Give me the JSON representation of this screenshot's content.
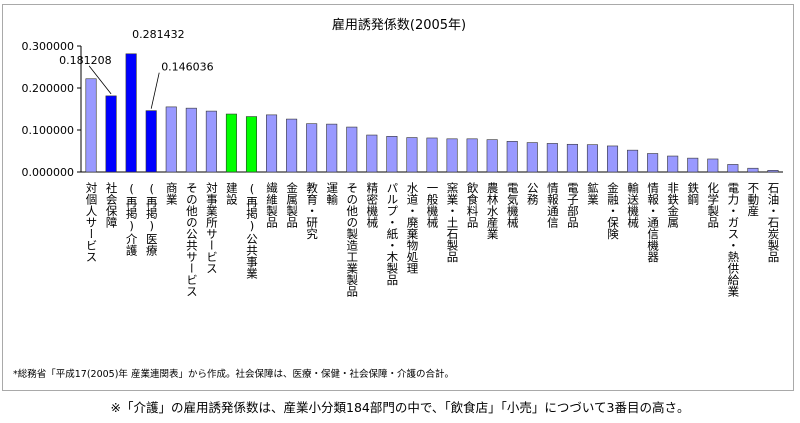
{
  "chart_data": {
    "type": "bar",
    "title": "雇用誘発係数(2005年)",
    "xlabel": "",
    "ylabel": "",
    "ylim": [
      0,
      0.3
    ],
    "yticks": [
      "0.000000",
      "0.100000",
      "0.200000",
      "0.300000"
    ],
    "grid": false,
    "legend": "none",
    "categories": [
      "対個人サービス",
      "社会保障",
      "(再掲)介護",
      "(再掲)医療",
      "商業",
      "その他の公共サービス",
      "対事業所サービス",
      "建設",
      "(再掲)公共事業",
      "繊維製品",
      "金属製品",
      "教育・研究",
      "運輸",
      "その他の製造工業製品",
      "精密機械",
      "パルプ・紙・木製品",
      "水道・廃棄物処理",
      "一般機械",
      "窯業・土石製品",
      "飲食料品",
      "農林水産業",
      "電気機械",
      "公務",
      "情報通信",
      "電子部品",
      "鉱業",
      "金融・保険",
      "輸送機械",
      "情報・通信機器",
      "非鉄金属",
      "鉄鋼",
      "化学製品",
      "電力・ガス・熱供給業",
      "不動産",
      "石油・石炭製品"
    ],
    "values": [
      0.222,
      0.181208,
      0.281432,
      0.146036,
      0.155,
      0.152,
      0.145,
      0.138,
      0.132,
      0.136,
      0.126,
      0.115,
      0.114,
      0.107,
      0.088,
      0.085,
      0.082,
      0.081,
      0.079,
      0.079,
      0.077,
      0.073,
      0.07,
      0.068,
      0.066,
      0.065,
      0.062,
      0.052,
      0.044,
      0.038,
      0.033,
      0.031,
      0.018,
      0.009,
      0.004
    ],
    "data_labels": [
      {
        "index": 1,
        "text": "0.181208"
      },
      {
        "index": 2,
        "text": "0.281432"
      },
      {
        "index": 3,
        "text": "0.146036"
      }
    ],
    "colors": {
      "default": "#9999ff",
      "highlight_blue": "#0000ff",
      "highlight_green": "#00ff00",
      "outline": "#333333"
    },
    "bar_color_groups": {
      "blue": [
        1,
        2,
        3
      ],
      "green": [
        7,
        8
      ]
    }
  },
  "footnote": "*総務省「平成17(2005)年 産業連関表」から作成。社会保障は、医療・保健・社会保障・介護の合計。",
  "caption": "※「介護」の雇用誘発係数は、産業小分類184部門の中で、「飲食店」「小売」につづいて3番目の高さ。"
}
